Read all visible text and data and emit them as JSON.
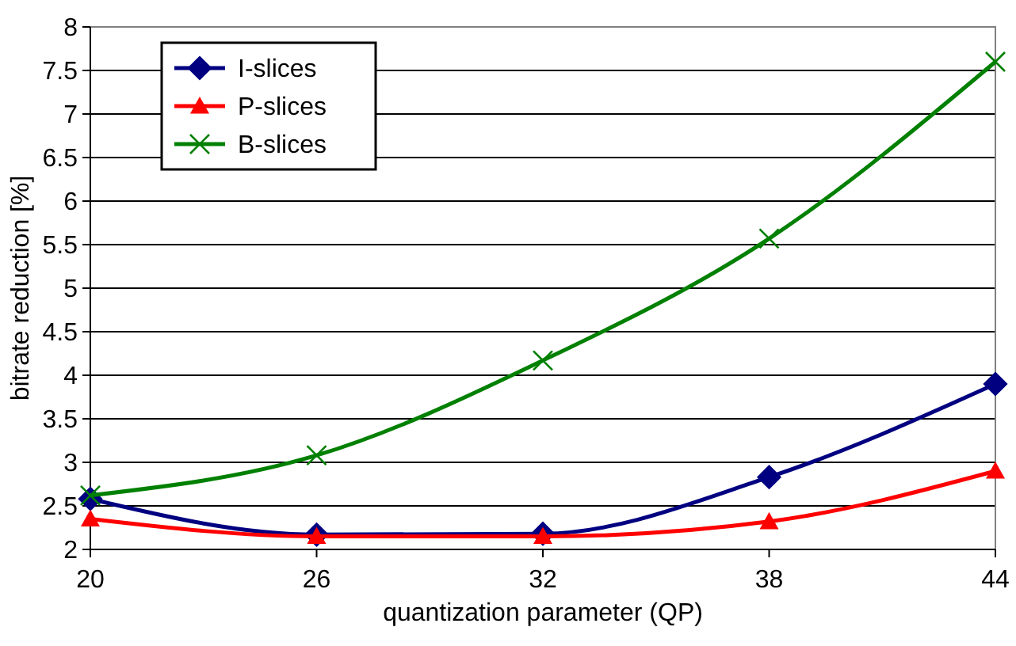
{
  "chart_data": {
    "type": "line",
    "xlabel": "quantization parameter (QP)",
    "ylabel": "bitrate reduction [%]",
    "x": [
      20,
      26,
      32,
      38,
      44
    ],
    "xlim": [
      20,
      44
    ],
    "xticks": [
      20,
      26,
      32,
      38,
      44
    ],
    "ylim": [
      2,
      8
    ],
    "yticks": [
      2,
      2.5,
      3,
      3.5,
      4,
      4.5,
      5,
      5.5,
      6,
      6.5,
      7,
      7.5,
      8
    ],
    "grid": "y",
    "legend": "top left",
    "series": [
      {
        "name": "I-slices",
        "color": "#000080",
        "marker": "diamond",
        "values": [
          2.58,
          2.17,
          2.18,
          2.83,
          3.9
        ]
      },
      {
        "name": "P-slices",
        "color": "#ff0000",
        "marker": "triangle",
        "values": [
          2.35,
          2.15,
          2.15,
          2.32,
          2.9
        ]
      },
      {
        "name": "B-slices",
        "color": "#008000",
        "marker": "cross",
        "values": [
          2.62,
          3.08,
          4.17,
          5.57,
          7.6
        ]
      }
    ]
  }
}
